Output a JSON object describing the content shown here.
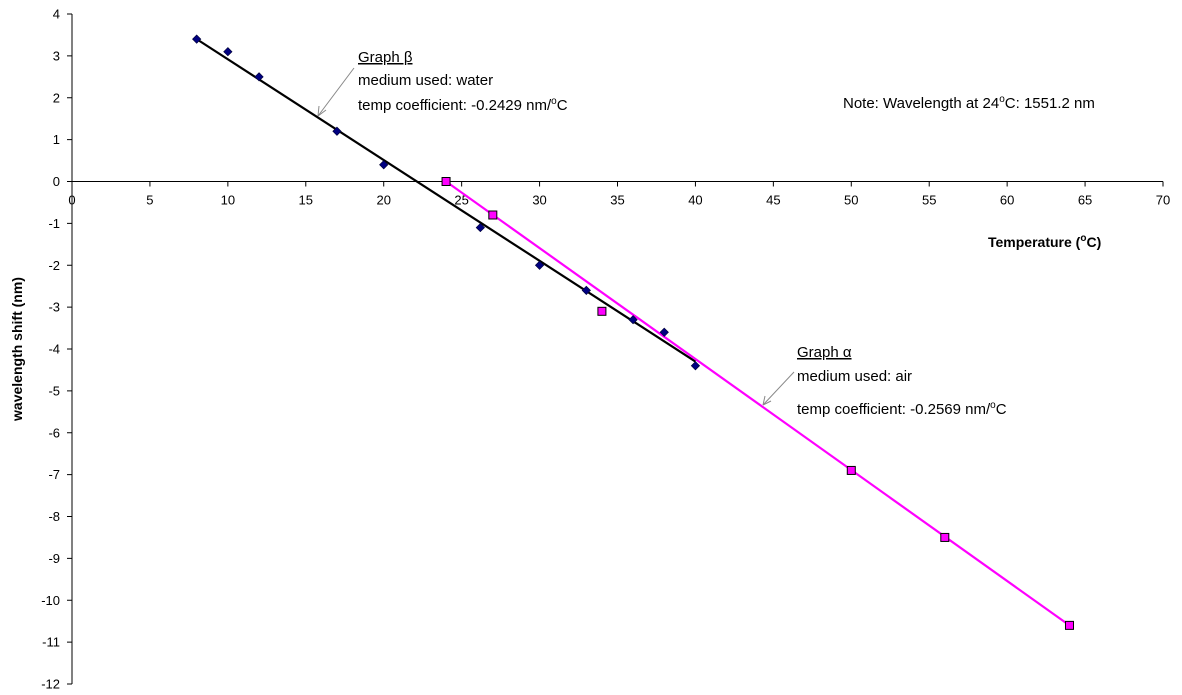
{
  "chart_data": {
    "type": "scatter",
    "xlabel": "Temperature",
    "xlabel_unit": "(oC)",
    "ylabel": "wavelength shift (nm)",
    "xlim": [
      0,
      70
    ],
    "ylim": [
      -12,
      4
    ],
    "x_ticks": [
      "0",
      "5",
      "10",
      "15",
      "20",
      "25",
      "30",
      "35",
      "40",
      "45",
      "50",
      "55",
      "60",
      "65",
      "70"
    ],
    "y_ticks": [
      "4",
      "3",
      "2",
      "1",
      "0",
      "-1",
      "-2",
      "-3",
      "-4",
      "-5",
      "-6",
      "-7",
      "-8",
      "-9",
      "-10",
      "-11",
      "-12"
    ],
    "grid": false,
    "legend": "none",
    "series": [
      {
        "name": "Graph β",
        "marker": "diamond",
        "marker_color": "#000080",
        "line_color": "#000000",
        "points": [
          [
            8,
            3.4
          ],
          [
            10,
            3.1
          ],
          [
            12,
            2.5
          ],
          [
            17,
            1.2
          ],
          [
            20,
            0.4
          ],
          [
            24,
            0
          ],
          [
            26.2,
            -1.1
          ],
          [
            30,
            -2
          ],
          [
            33,
            -2.6
          ],
          [
            36,
            -3.3
          ],
          [
            38,
            -3.6
          ],
          [
            40,
            -4.4
          ]
        ],
        "fit": {
          "x": [
            8,
            40
          ],
          "y": [
            3.4,
            -4.3
          ]
        }
      },
      {
        "name": "Graph α",
        "marker": "square",
        "marker_color": "#FF00FF",
        "line_color": "#FF00FF",
        "points": [
          [
            24,
            0
          ],
          [
            27,
            -0.8
          ],
          [
            34,
            -3.1
          ],
          [
            50,
            -6.9
          ],
          [
            56,
            -8.5
          ],
          [
            64,
            -10.6
          ]
        ],
        "fit": {
          "x": [
            24,
            64
          ],
          "y": [
            0,
            -10.6
          ]
        }
      }
    ],
    "annotations": {
      "beta": {
        "title": "Graph β",
        "medium": "medium used: water",
        "coef": "temp coefficient: -0.2429 nm/",
        "coef_sup": "o",
        "coef_unit": "C"
      },
      "alpha": {
        "title": "Graph α",
        "medium": "medium used: air",
        "coef": "temp coefficient: -0.2569 nm/",
        "coef_sup": "o",
        "coef_unit": "C"
      },
      "note": {
        "prefix": "Note: Wavelength at 24",
        "sup": "o",
        "suffix": "C: 1551.2 nm"
      }
    }
  }
}
